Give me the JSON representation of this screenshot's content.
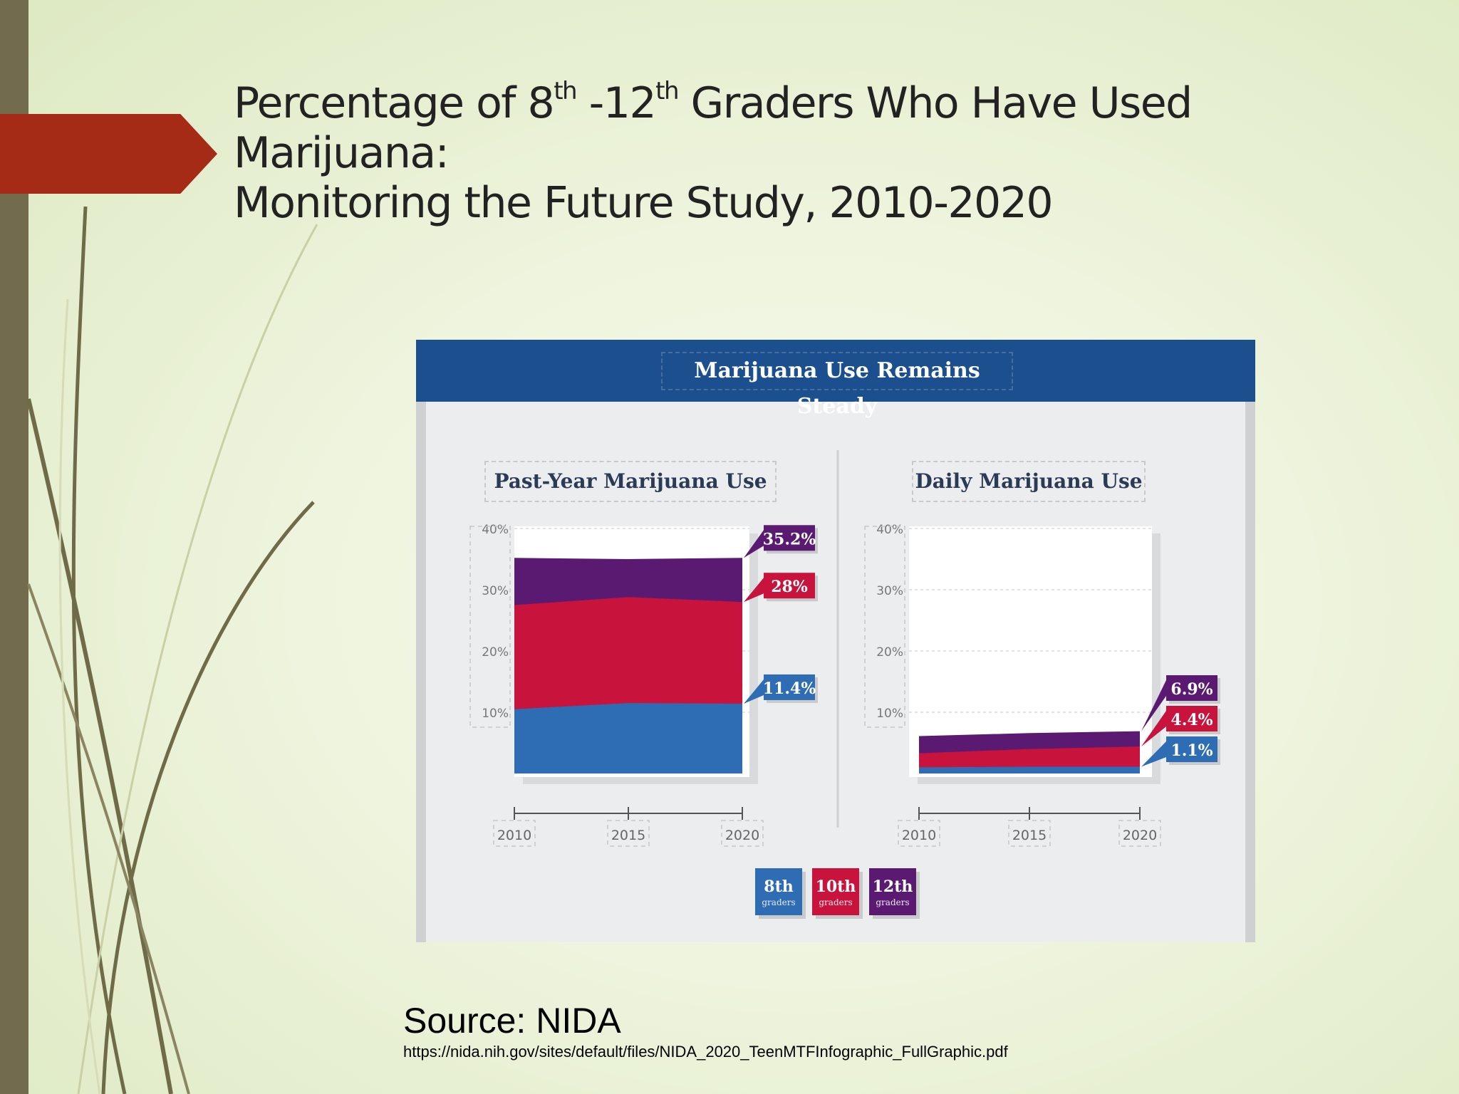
{
  "slide": {
    "title_prefix": "Percentage of 8",
    "title_sup1": "th",
    "title_mid": " -12",
    "title_sup2": "th",
    "title_line1_end": " Graders Who Have Used Marijuana:",
    "title_line2": "Monitoring the Future Study, 2010-2020"
  },
  "infographic": {
    "banner_title": "Marijuana Use Remains Steady"
  },
  "chart_data": [
    {
      "type": "area",
      "title": "Past-Year Marijuana Use",
      "x": [
        "2010",
        "2015",
        "2020"
      ],
      "yticks": [
        "10%",
        "20%",
        "30%",
        "40%"
      ],
      "ylim": [
        0,
        40
      ],
      "stacked": true,
      "series": [
        {
          "name": "8th graders",
          "values": [
            10.5,
            11.5,
            11.4
          ],
          "color": "#2e6db4",
          "label": "11.4%"
        },
        {
          "name": "10th graders",
          "values": [
            27.5,
            28.8,
            28.0
          ],
          "color": "#c8133d",
          "label": "28%"
        },
        {
          "name": "12th graders",
          "values": [
            35.2,
            35.0,
            35.2
          ],
          "color": "#5b1a72",
          "label": "35.2%"
        }
      ]
    },
    {
      "type": "area",
      "title": "Daily Marijuana Use",
      "x": [
        "2010",
        "2015",
        "2020"
      ],
      "yticks": [
        "10%",
        "20%",
        "30%",
        "40%"
      ],
      "ylim": [
        0,
        40
      ],
      "stacked": true,
      "series": [
        {
          "name": "8th graders",
          "values": [
            1.0,
            1.1,
            1.1
          ],
          "color": "#2e6db4",
          "label": "1.1%"
        },
        {
          "name": "10th graders",
          "values": [
            3.3,
            4.0,
            4.4
          ],
          "color": "#c8133d",
          "label": "4.4%"
        },
        {
          "name": "12th graders",
          "values": [
            6.1,
            6.6,
            6.9
          ],
          "color": "#5b1a72",
          "label": "6.9%"
        }
      ]
    }
  ],
  "legend": [
    {
      "grade": "8th",
      "sub": "graders",
      "color": "#2e6db4"
    },
    {
      "grade": "10th",
      "sub": "graders",
      "color": "#c8133d"
    },
    {
      "grade": "12th",
      "sub": "graders",
      "color": "#5b1a72"
    }
  ],
  "source": {
    "title": "Source: NIDA",
    "url": "https://nida.nih.gov/sites/default/files/NIDA_2020_TeenMTFInfographic_FullGraphic.pdf"
  },
  "colors": {
    "accent_red": "#a52b17",
    "sidebar": "#736b4d",
    "banner": "#1b4f8d"
  }
}
